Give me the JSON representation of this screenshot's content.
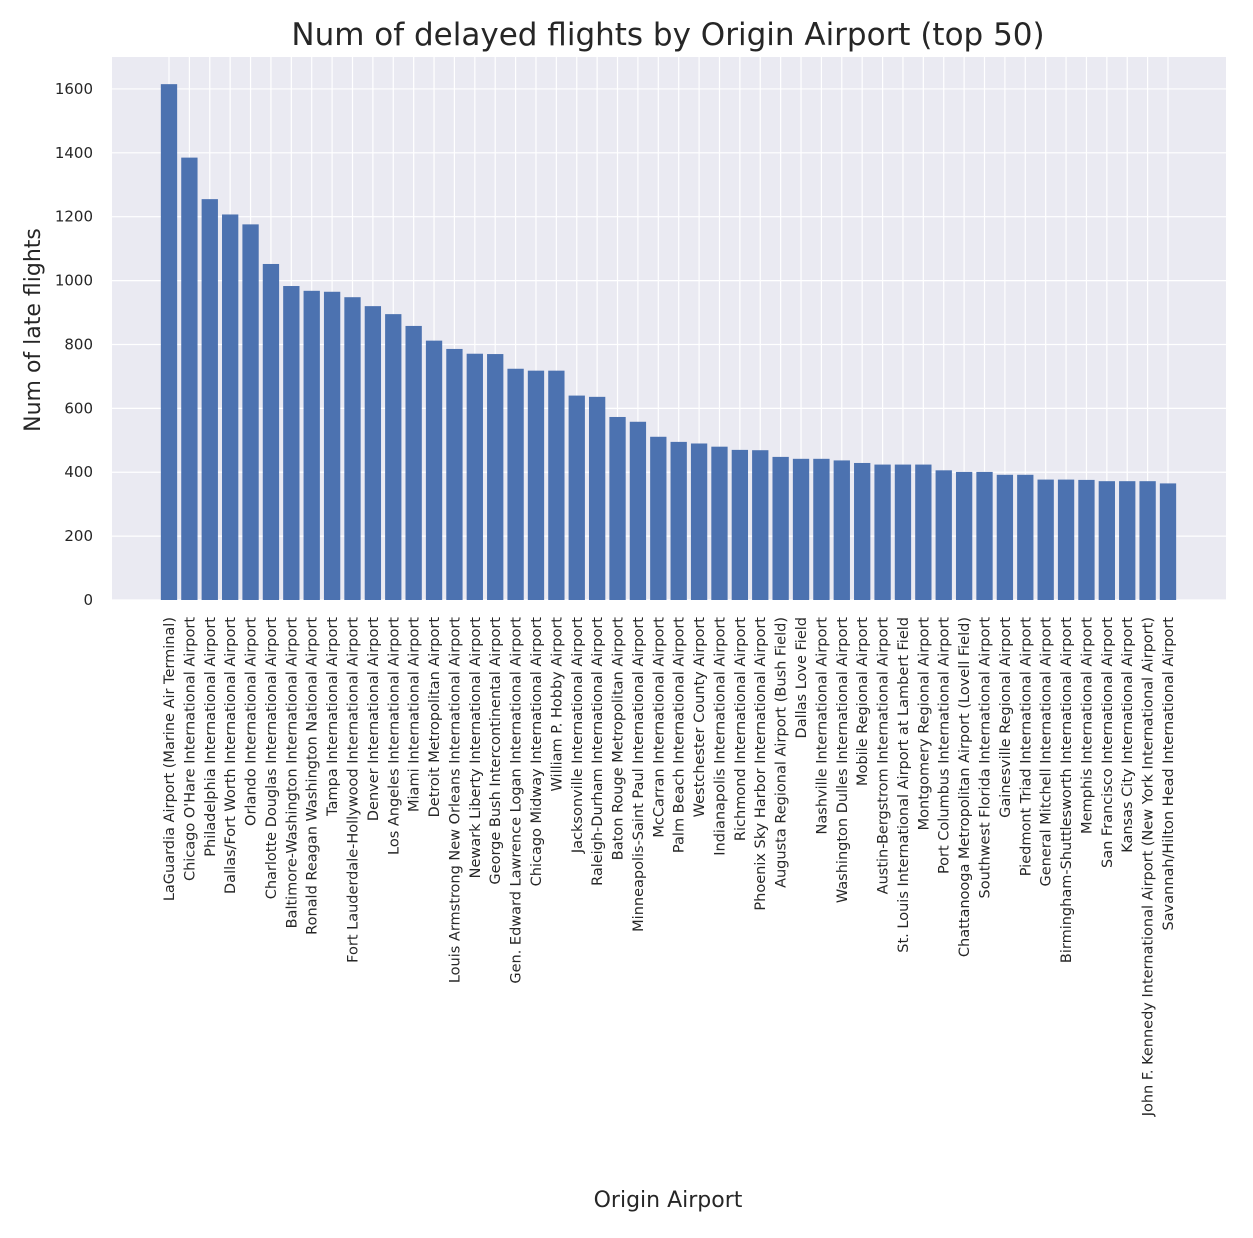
{
  "chart_data": {
    "type": "bar",
    "title": "Num of delayed flights by Origin Airport (top 50)",
    "xlabel": "Origin Airport",
    "ylabel": "Num of late flights",
    "ylim": [
      0,
      1700
    ],
    "yticks": [
      0,
      200,
      400,
      600,
      800,
      1000,
      1200,
      1400,
      1600
    ],
    "grid": true,
    "colors": {
      "bar": "#4c72b0",
      "plot_background": "#eaeaf2",
      "grid": "#ffffff",
      "text": "#262626"
    },
    "categories": [
      "LaGuardia Airport (Marine Air Terminal)",
      "Chicago O'Hare International Airport",
      "Philadelphia International Airport",
      "Dallas/Fort Worth International Airport",
      "Orlando International Airport",
      "Charlotte Douglas International Airport",
      "Baltimore-Washington International Airport",
      "Ronald Reagan Washington National Airport",
      "Tampa International Airport",
      "Fort Lauderdale-Hollywood International Airport",
      "Denver International Airport",
      "Los Angeles International Airport",
      "Miami International Airport",
      "Detroit Metropolitan Airport",
      "Louis Armstrong New Orleans International Airport",
      "Newark Liberty International Airport",
      "George Bush Intercontinental Airport",
      "Gen. Edward Lawrence Logan International Airport",
      "Chicago Midway International Airport",
      "William P. Hobby Airport",
      "Jacksonville International Airport",
      "Raleigh-Durham International Airport",
      "Baton Rouge Metropolitan Airport",
      "Minneapolis-Saint Paul International Airport",
      "McCarran International Airport",
      "Palm Beach International Airport",
      "Westchester County Airport",
      "Indianapolis International Airport",
      "Richmond International Airport",
      "Phoenix Sky Harbor International Airport",
      "Augusta Regional Airport (Bush Field)",
      "Dallas Love Field",
      "Nashville International Airport",
      "Washington Dulles International Airport",
      "Mobile Regional Airport",
      "Austin-Bergstrom International Airport",
      "St. Louis International Airport at Lambert Field",
      "Montgomery Regional Airport",
      "Port Columbus International Airport",
      "Chattanooga Metropolitan Airport (Lovell Field)",
      "Southwest Florida International Airport",
      "Gainesville Regional Airport",
      "Piedmont Triad International Airport",
      "General Mitchell International Airport",
      "Birmingham-Shuttlesworth International Airport",
      "Memphis International Airport",
      "San Francisco International Airport",
      "Kansas City International Airport",
      "John F. Kennedy International Airport (New York International Airport)",
      "Savannah/Hilton Head International Airport"
    ],
    "values": [
      1615,
      1385,
      1255,
      1207,
      1176,
      1052,
      983,
      968,
      965,
      948,
      920,
      895,
      858,
      812,
      786,
      771,
      770,
      724,
      718,
      718,
      640,
      636,
      573,
      558,
      511,
      495,
      490,
      480,
      470,
      469,
      448,
      442,
      442,
      437,
      429,
      424,
      424,
      424,
      406,
      401,
      401,
      392,
      392,
      377,
      377,
      376,
      372,
      372,
      372,
      365
    ]
  }
}
